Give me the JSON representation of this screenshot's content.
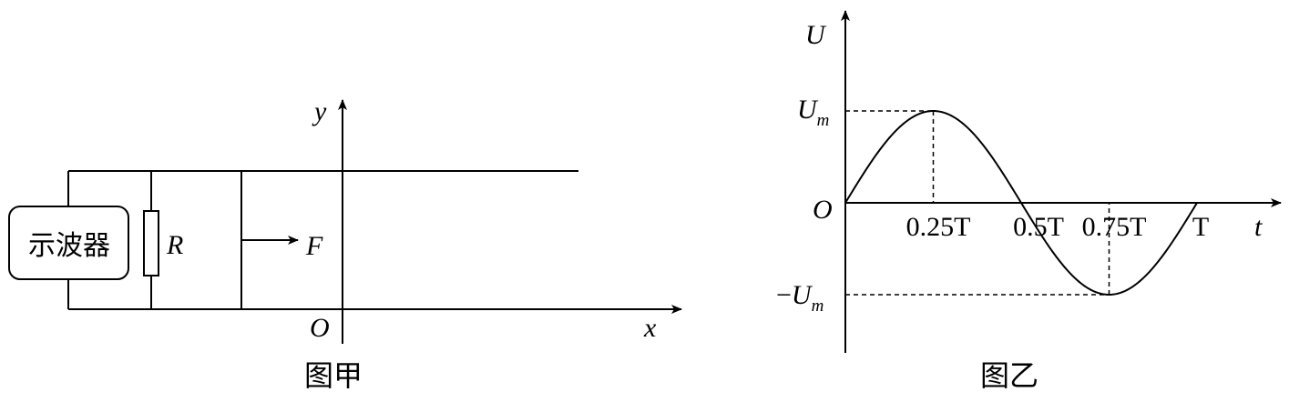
{
  "figure_a": {
    "caption": "图甲",
    "oscilloscope_label": "示波器",
    "resistor_label": "R",
    "force_label": "F",
    "y_axis_label": "y",
    "x_axis_label": "x",
    "origin_label": "O"
  },
  "figure_b": {
    "caption": "图乙",
    "y_axis_label": "U",
    "x_axis_label": "t",
    "origin_label": "O",
    "max_label": {
      "main": "U",
      "sub": "m"
    },
    "min_label": {
      "sign": "−",
      "main": "U",
      "sub": "m"
    },
    "tick_labels": [
      "0.25T",
      "0.5T",
      "0.75T",
      "T"
    ]
  },
  "chart_data": {
    "type": "line",
    "title": "",
    "xlabel": "t",
    "ylabel": "U",
    "x_ticks": [
      "0.25T",
      "0.5T",
      "0.75T",
      "T"
    ],
    "y_ticks": [
      "Um",
      "-Um"
    ],
    "series": [
      {
        "x": [
          0,
          0.25,
          0.5,
          0.75,
          1.0
        ],
        "y": [
          0,
          1,
          0,
          -1,
          0
        ]
      }
    ],
    "xlim": [
      0,
      1.0
    ],
    "ylim": [
      -1,
      1
    ],
    "grid": false
  }
}
